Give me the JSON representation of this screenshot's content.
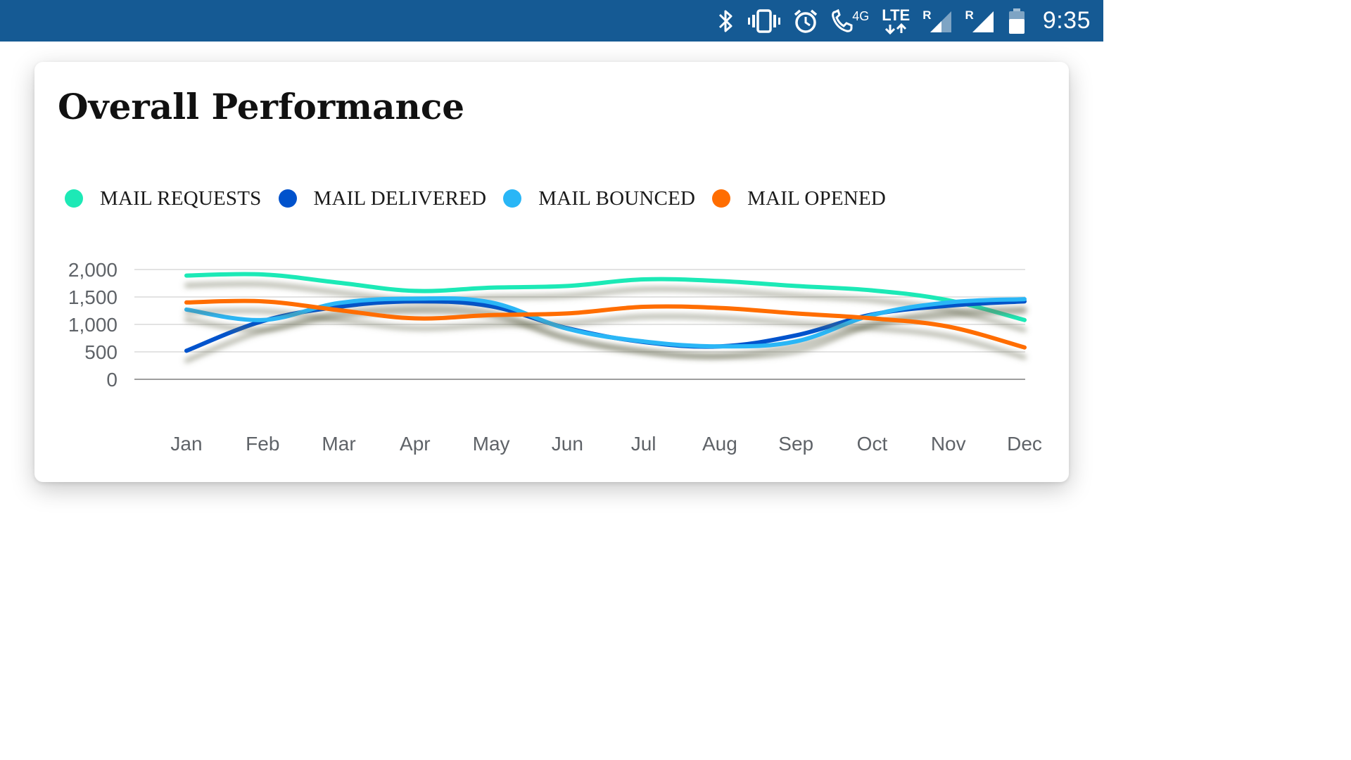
{
  "status_bar": {
    "time": "9:35",
    "network_label": "LTE",
    "network_gen": "4G",
    "roaming_mark": "R",
    "background_color": "#155a94",
    "icons": [
      "bluetooth-icon",
      "vibrate-icon",
      "alarm-icon",
      "wifi-calling-icon",
      "lte-icon",
      "signal-icon",
      "signal-icon",
      "battery-icon"
    ]
  },
  "card": {
    "title": "Overall Performance"
  },
  "chart_data": {
    "type": "line",
    "title": "Overall Performance",
    "xlabel": "",
    "ylabel": "",
    "categories": [
      "Jan",
      "Feb",
      "Mar",
      "Apr",
      "May",
      "Jun",
      "Jul",
      "Aug",
      "Sep",
      "Oct",
      "Nov",
      "Dec"
    ],
    "ylim": [
      0,
      2000
    ],
    "yticks": [
      0,
      500,
      1000,
      1500,
      2000
    ],
    "ytick_labels": [
      "0",
      "500",
      "1,000",
      "1,500",
      "2,000"
    ],
    "grid": true,
    "legend_position": "top-left",
    "series": [
      {
        "name": "MAIL REQUESTS",
        "color": "#1de9b6",
        "values": [
          1890,
          1910,
          1760,
          1610,
          1670,
          1700,
          1820,
          1790,
          1700,
          1620,
          1440,
          1080
        ]
      },
      {
        "name": "MAIL DELIVERED",
        "color": "#0052cc",
        "values": [
          520,
          1060,
          1320,
          1420,
          1330,
          930,
          680,
          600,
          800,
          1180,
          1340,
          1420
        ]
      },
      {
        "name": "MAIL BOUNCED",
        "color": "#29b6f6",
        "values": [
          1270,
          1080,
          1390,
          1470,
          1400,
          920,
          690,
          600,
          690,
          1170,
          1400,
          1460
        ]
      },
      {
        "name": "MAIL OPENED",
        "color": "#ff6d00",
        "values": [
          1400,
          1420,
          1260,
          1110,
          1170,
          1200,
          1320,
          1300,
          1200,
          1110,
          960,
          580
        ]
      }
    ]
  }
}
